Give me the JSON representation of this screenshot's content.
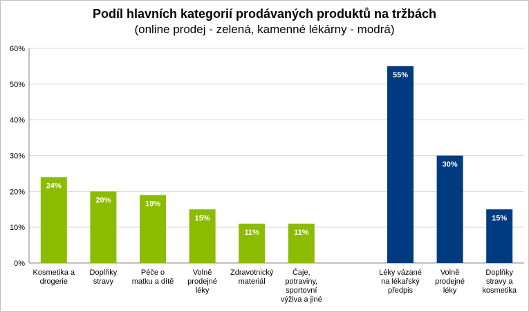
{
  "chart_data": {
    "type": "bar",
    "title": "Podíl hlavních kategorií prodávaných produktů na tržbách",
    "subtitle": "(online prodej - zelená, kamenné lékárny - modrá)",
    "ylim": [
      0,
      60
    ],
    "yticks": [
      "0%",
      "10%",
      "20%",
      "30%",
      "40%",
      "50%",
      "60%"
    ],
    "grid": true,
    "colors": {
      "online": "#8CBC00",
      "stores": "#003A80"
    },
    "series": [
      {
        "group": "online",
        "categories": [
          [
            "Kosmetika a",
            "drogerie"
          ],
          [
            "Doplňky",
            "stravy"
          ],
          [
            "Péče o",
            "matku a dítě"
          ],
          [
            "Volně",
            "prodejné",
            "léky"
          ],
          [
            "Zdravotnický",
            "materiál"
          ],
          [
            "Čaje,",
            "potraviny,",
            "sportovní",
            "výživa a jiné"
          ]
        ],
        "values": [
          24,
          20,
          19,
          15,
          11,
          11
        ],
        "labels": [
          "24%",
          "20%",
          "19%",
          "15%",
          "11%",
          "11%"
        ]
      },
      {
        "group": "stores",
        "categories": [
          [
            "Léky vázané",
            "na lékařský",
            "předpis"
          ],
          [
            "Volně",
            "prodejné",
            "léky"
          ],
          [
            "Doplňky",
            "stravy a",
            "kosmetika"
          ]
        ],
        "values": [
          55,
          30,
          15
        ],
        "labels": [
          "55%",
          "30%",
          "15%"
        ]
      }
    ]
  }
}
